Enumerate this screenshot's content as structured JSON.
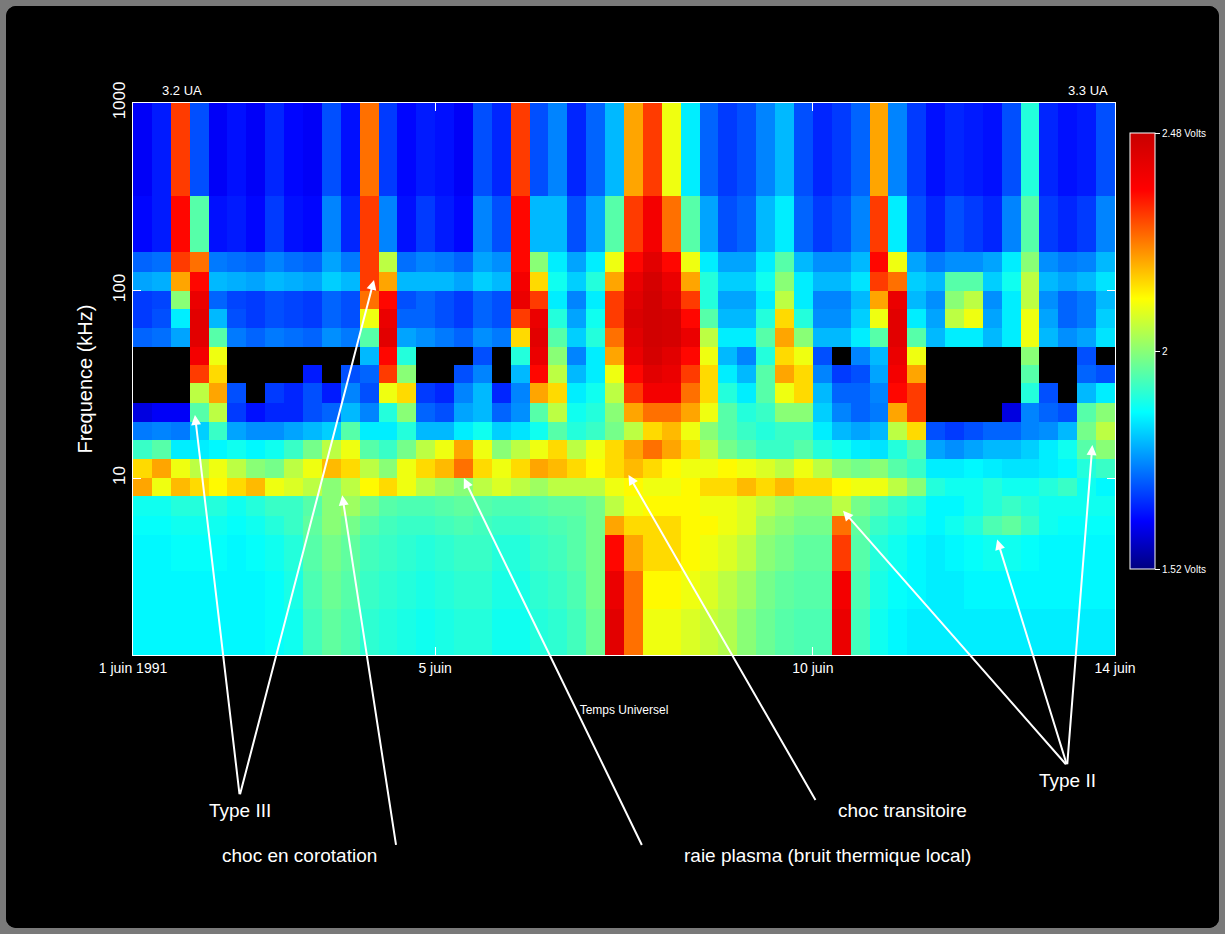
{
  "chart_data": {
    "type": "heatmap",
    "x_label": "Temps Universel",
    "y_label": "Frequence (kHz)",
    "xlim": [
      1,
      14
    ],
    "xticks": [
      {
        "value": 1,
        "label": "1 juin 1991"
      },
      {
        "value": 5,
        "label": "5 juin"
      },
      {
        "value": 10,
        "label": "10 juin"
      },
      {
        "value": 14,
        "label": "14 juin"
      }
    ],
    "ylim": [
      1.14,
      1000
    ],
    "yticks": [
      10,
      100,
      1000
    ],
    "log": "y",
    "grid": false,
    "top_labels": [
      "3.2 UA",
      "3.3 UA"
    ],
    "x_edges": [
      1,
      1.25,
      1.5,
      1.75,
      2,
      2.25,
      2.5,
      2.75,
      3,
      3.25,
      3.5,
      3.75,
      4,
      4.25,
      4.5,
      4.75,
      5,
      5.25,
      5.5,
      5.75,
      6,
      6.25,
      6.5,
      6.75,
      7,
      7.25,
      7.5,
      7.75,
      8,
      8.25,
      8.5,
      8.75,
      9,
      9.25,
      9.5,
      9.75,
      10,
      10.25,
      10.5,
      10.75,
      11,
      11.25,
      11.5,
      11.75,
      12,
      12.25,
      12.5,
      12.75,
      13,
      13.25,
      13.5,
      13.75,
      14
    ],
    "y_edges": [
      1.14,
      2,
      3.2,
      5,
      6.3,
      8,
      10,
      12.6,
      16,
      20,
      25,
      32,
      40,
      50,
      63,
      80,
      100,
      126,
      160,
      320,
      1000
    ],
    "cells": [
      [
        1.86,
        1.86,
        1.86,
        1.86,
        1.86,
        1.86,
        1.86,
        1.87,
        1.88,
        1.93,
        1.96,
        1.94,
        1.91,
        1.9,
        1.89,
        1.88,
        1.89,
        1.9,
        1.9,
        1.88,
        1.88,
        1.9,
        1.91,
        1.93,
        1.97,
        2.42,
        2.25,
        2.1,
        2.1,
        2.08,
        2.06,
        2.04,
        2.0,
        1.97,
        1.95,
        1.94,
        1.94,
        2.4,
        1.93,
        1.88,
        1.86,
        1.85,
        1.85,
        1.85,
        1.85,
        1.85,
        1.85,
        1.85,
        1.85,
        1.85,
        1.85,
        1.85
      ],
      [
        1.86,
        1.86,
        1.86,
        1.86,
        1.86,
        1.86,
        1.86,
        1.87,
        1.89,
        1.94,
        1.97,
        1.95,
        1.92,
        1.91,
        1.9,
        1.89,
        1.9,
        1.91,
        1.91,
        1.89,
        1.89,
        1.91,
        1.92,
        1.94,
        1.98,
        2.4,
        2.25,
        2.12,
        2.12,
        2.1,
        2.08,
        2.05,
        2.02,
        1.98,
        1.96,
        1.95,
        1.95,
        2.38,
        1.94,
        1.89,
        1.87,
        1.86,
        1.85,
        1.85,
        1.86,
        1.86,
        1.86,
        1.86,
        1.86,
        1.86,
        1.86,
        1.86
      ],
      [
        1.86,
        1.86,
        1.87,
        1.87,
        1.87,
        1.86,
        1.87,
        1.88,
        1.9,
        1.95,
        1.98,
        1.96,
        1.93,
        1.92,
        1.91,
        1.9,
        1.91,
        1.92,
        1.92,
        1.9,
        1.9,
        1.92,
        1.93,
        1.95,
        1.98,
        2.35,
        2.2,
        2.15,
        2.15,
        2.12,
        2.1,
        2.08,
        2.05,
        2.0,
        1.98,
        1.96,
        1.96,
        2.3,
        1.95,
        1.9,
        1.88,
        1.86,
        1.85,
        1.86,
        1.87,
        1.88,
        1.88,
        1.87,
        1.86,
        1.86,
        1.86,
        1.86
      ],
      [
        1.87,
        1.87,
        1.88,
        1.88,
        1.88,
        1.87,
        1.88,
        1.9,
        1.92,
        1.96,
        2.0,
        1.98,
        1.95,
        1.93,
        1.92,
        1.92,
        1.93,
        1.94,
        1.93,
        1.92,
        1.92,
        1.93,
        1.94,
        1.95,
        1.98,
        2.2,
        2.15,
        2.15,
        2.15,
        2.12,
        2.12,
        2.1,
        2.08,
        2.02,
        2.0,
        1.98,
        1.98,
        2.25,
        1.96,
        1.92,
        1.9,
        1.88,
        1.86,
        1.88,
        1.9,
        1.94,
        1.96,
        1.92,
        1.88,
        1.87,
        1.87,
        1.87
      ],
      [
        1.88,
        1.88,
        1.9,
        1.9,
        1.9,
        1.88,
        1.9,
        1.92,
        1.92,
        1.95,
        2.0,
        2.02,
        1.98,
        1.95,
        1.94,
        1.94,
        1.95,
        1.96,
        1.95,
        1.94,
        1.94,
        1.95,
        1.96,
        1.96,
        1.98,
        2.05,
        2.1,
        2.12,
        2.12,
        2.12,
        2.1,
        2.1,
        2.08,
        2.05,
        2.02,
        2.0,
        2.0,
        2.05,
        1.98,
        1.95,
        1.92,
        1.9,
        1.86,
        1.86,
        1.88,
        1.9,
        1.92,
        1.9,
        1.88,
        1.88,
        1.88,
        1.88
      ],
      [
        2.2,
        2.1,
        2.18,
        2.15,
        2.12,
        2.15,
        2.18,
        2.1,
        2.08,
        2.05,
        2.0,
        2.05,
        2.12,
        2.15,
        2.1,
        2.05,
        2.02,
        2.0,
        2.05,
        2.08,
        2.05,
        2.02,
        2.05,
        2.05,
        2.05,
        2.1,
        2.12,
        2.1,
        2.1,
        2.12,
        2.15,
        2.15,
        2.18,
        2.15,
        2.18,
        2.15,
        2.15,
        2.12,
        2.1,
        2.1,
        2.05,
        2.0,
        1.9,
        1.88,
        1.88,
        1.9,
        1.88,
        1.88,
        1.9,
        1.92,
        1.88,
        1.86
      ],
      [
        2.15,
        2.2,
        2.1,
        2.05,
        2.1,
        2.05,
        2.0,
        1.98,
        2.05,
        2.1,
        2.18,
        2.15,
        2.05,
        2.0,
        2.1,
        2.15,
        2.18,
        2.25,
        2.15,
        2.1,
        2.15,
        2.2,
        2.18,
        2.15,
        2.12,
        2.15,
        2.18,
        2.15,
        2.12,
        2.1,
        2.1,
        2.12,
        2.1,
        2.08,
        2.05,
        2.1,
        2.05,
        2.0,
        1.98,
        2.0,
        1.95,
        1.92,
        1.85,
        1.85,
        1.86,
        1.85,
        1.84,
        1.84,
        1.85,
        1.86,
        1.9,
        1.92
      ],
      [
        1.92,
        1.95,
        1.85,
        1.85,
        1.86,
        1.88,
        1.86,
        1.88,
        1.92,
        1.98,
        2.05,
        2.1,
        1.95,
        1.92,
        1.98,
        2.05,
        2.1,
        2.2,
        2.1,
        2.0,
        2.05,
        2.1,
        2.15,
        2.05,
        2.1,
        2.15,
        2.2,
        2.25,
        2.2,
        2.15,
        2.05,
        1.98,
        1.95,
        1.92,
        1.92,
        1.95,
        1.9,
        1.88,
        1.85,
        1.84,
        1.9,
        1.95,
        1.78,
        1.76,
        1.78,
        1.8,
        1.8,
        1.82,
        1.85,
        1.88,
        1.95,
        2.0
      ],
      [
        1.74,
        1.75,
        1.74,
        1.82,
        1.92,
        1.78,
        1.76,
        1.76,
        1.78,
        1.8,
        1.82,
        1.95,
        1.85,
        1.85,
        1.9,
        1.8,
        1.8,
        1.85,
        1.88,
        1.82,
        1.84,
        1.88,
        1.95,
        1.9,
        1.92,
        1.98,
        2.05,
        2.15,
        2.18,
        2.1,
        2.0,
        1.95,
        1.92,
        1.9,
        1.92,
        1.92,
        1.85,
        1.8,
        1.78,
        1.8,
        2.05,
        2.15,
        1.7,
        1.68,
        1.7,
        1.72,
        1.72,
        1.75,
        1.76,
        1.8,
        1.98,
        2.05
      ],
      [
        1.6,
        1.62,
        1.62,
        1.95,
        2.05,
        1.68,
        1.64,
        1.66,
        1.66,
        1.7,
        1.72,
        1.8,
        1.75,
        1.9,
        2.0,
        1.72,
        1.7,
        1.78,
        1.8,
        1.72,
        1.76,
        1.95,
        2.05,
        1.88,
        1.9,
        2.0,
        2.2,
        2.25,
        2.25,
        2.2,
        2.1,
        1.95,
        1.9,
        1.92,
        2.0,
        2.0,
        1.82,
        1.75,
        1.72,
        1.74,
        2.2,
        2.3,
        null,
        null,
        null,
        null,
        1.6,
        1.75,
        1.72,
        1.7,
        1.95,
        2.0
      ],
      [
        null,
        null,
        null,
        2.05,
        2.2,
        1.7,
        null,
        1.68,
        1.66,
        1.7,
        1.65,
        1.75,
        1.7,
        2.1,
        2.15,
        1.68,
        1.66,
        1.75,
        1.8,
        1.66,
        1.75,
        2.2,
        2.15,
        1.85,
        1.88,
        2.05,
        2.3,
        2.38,
        2.38,
        2.25,
        2.15,
        1.9,
        1.85,
        1.95,
        2.1,
        2.15,
        1.8,
        1.72,
        1.72,
        1.75,
        2.35,
        2.3,
        null,
        null,
        null,
        null,
        null,
        1.9,
        1.7,
        null,
        1.8,
        1.85
      ],
      [
        null,
        null,
        null,
        2.3,
        2.15,
        null,
        null,
        null,
        null,
        1.65,
        null,
        1.7,
        1.72,
        2.3,
        2.0,
        null,
        null,
        1.7,
        1.75,
        null,
        1.8,
        2.35,
        2.05,
        1.8,
        1.85,
        2.1,
        2.35,
        2.42,
        2.4,
        2.3,
        2.15,
        1.85,
        1.8,
        1.95,
        2.2,
        2.15,
        1.75,
        1.68,
        1.7,
        1.78,
        2.38,
        2.2,
        null,
        null,
        null,
        null,
        null,
        1.95,
        null,
        null,
        1.72,
        1.7
      ],
      [
        null,
        null,
        null,
        2.38,
        2.1,
        null,
        null,
        null,
        null,
        null,
        null,
        null,
        1.8,
        2.35,
        1.9,
        null,
        null,
        null,
        1.7,
        null,
        1.9,
        2.4,
        2.0,
        1.75,
        1.85,
        2.2,
        2.4,
        2.45,
        2.42,
        2.35,
        2.1,
        1.8,
        1.75,
        1.9,
        2.15,
        2.1,
        1.7,
        null,
        1.75,
        1.8,
        2.4,
        2.1,
        null,
        null,
        null,
        null,
        null,
        2.0,
        null,
        null,
        1.7,
        null
      ],
      [
        1.72,
        1.73,
        1.78,
        2.42,
        1.95,
        1.74,
        1.72,
        1.74,
        1.73,
        1.72,
        1.76,
        1.74,
        1.95,
        2.42,
        1.78,
        1.76,
        1.74,
        1.72,
        1.76,
        1.74,
        2.15,
        2.42,
        1.95,
        1.82,
        1.9,
        2.25,
        2.42,
        2.46,
        2.45,
        2.4,
        2.05,
        1.85,
        1.85,
        1.95,
        2.2,
        2.0,
        1.8,
        1.8,
        1.85,
        1.95,
        2.42,
        1.95,
        1.8,
        1.85,
        1.85,
        1.8,
        1.85,
        2.1,
        1.8,
        1.76,
        1.78,
        1.84
      ],
      [
        1.68,
        1.7,
        1.85,
        2.42,
        1.8,
        1.7,
        1.68,
        1.7,
        1.69,
        1.68,
        1.72,
        1.7,
        2.1,
        2.4,
        1.72,
        1.72,
        1.7,
        1.68,
        1.72,
        1.7,
        2.3,
        2.4,
        1.9,
        1.78,
        1.88,
        2.3,
        2.44,
        2.46,
        2.45,
        2.35,
        1.95,
        1.8,
        1.8,
        1.9,
        2.15,
        1.9,
        1.76,
        1.76,
        1.82,
        2.1,
        2.42,
        1.85,
        1.78,
        2.05,
        2.1,
        1.78,
        1.85,
        2.1,
        1.78,
        1.72,
        1.74,
        1.82
      ],
      [
        1.68,
        1.69,
        2.0,
        2.4,
        1.72,
        1.69,
        1.68,
        1.7,
        1.69,
        1.68,
        1.72,
        1.7,
        2.25,
        2.35,
        1.7,
        1.72,
        1.7,
        1.68,
        1.72,
        1.7,
        2.4,
        2.3,
        1.85,
        1.75,
        1.85,
        2.3,
        2.42,
        2.46,
        2.42,
        2.3,
        1.9,
        1.78,
        1.78,
        1.85,
        2.05,
        1.85,
        1.75,
        1.75,
        1.8,
        2.2,
        2.4,
        1.8,
        1.76,
        2.0,
        2.05,
        1.76,
        1.85,
        2.05,
        1.76,
        1.72,
        1.74,
        1.8
      ],
      [
        1.78,
        1.79,
        2.2,
        2.35,
        1.8,
        1.79,
        1.78,
        1.8,
        1.79,
        1.78,
        1.82,
        1.8,
        2.3,
        2.2,
        1.8,
        1.8,
        1.8,
        1.78,
        1.82,
        1.8,
        2.38,
        2.15,
        1.88,
        1.82,
        1.9,
        2.2,
        2.4,
        2.45,
        2.4,
        2.2,
        1.9,
        1.82,
        1.82,
        1.88,
        2.0,
        1.85,
        1.8,
        1.8,
        1.84,
        2.3,
        2.25,
        1.82,
        1.8,
        1.95,
        1.95,
        1.82,
        1.88,
        2.05,
        1.8,
        1.78,
        1.8,
        1.84
      ],
      [
        1.72,
        1.73,
        2.3,
        2.25,
        1.74,
        1.73,
        1.72,
        1.75,
        1.73,
        1.72,
        1.78,
        1.74,
        2.3,
        2.05,
        1.73,
        1.75,
        1.74,
        1.72,
        1.78,
        1.76,
        2.35,
        2.0,
        1.85,
        1.78,
        1.85,
        2.1,
        2.35,
        2.42,
        2.35,
        2.1,
        1.85,
        1.78,
        1.78,
        1.85,
        1.95,
        1.8,
        1.76,
        1.76,
        1.8,
        2.35,
        2.1,
        1.78,
        1.74,
        1.76,
        1.76,
        1.78,
        1.85,
        2.0,
        1.76,
        1.74,
        1.75,
        1.8
      ],
      [
        1.63,
        1.65,
        2.35,
        1.95,
        1.64,
        1.65,
        1.63,
        1.68,
        1.64,
        1.63,
        1.75,
        1.66,
        2.3,
        1.75,
        1.64,
        1.68,
        1.65,
        1.63,
        1.75,
        1.7,
        2.35,
        1.8,
        1.8,
        1.7,
        1.78,
        1.95,
        2.3,
        2.38,
        2.25,
        1.95,
        1.78,
        1.7,
        1.72,
        1.8,
        1.85,
        1.72,
        1.68,
        1.7,
        1.75,
        2.3,
        1.85,
        1.7,
        1.66,
        1.7,
        1.68,
        1.66,
        1.75,
        1.95,
        1.68,
        1.66,
        1.68,
        1.75
      ],
      [
        1.62,
        1.65,
        2.3,
        1.7,
        1.62,
        1.64,
        1.62,
        1.66,
        1.63,
        1.62,
        1.7,
        1.64,
        2.25,
        1.68,
        1.63,
        1.65,
        1.64,
        1.62,
        1.7,
        1.66,
        2.3,
        1.7,
        1.75,
        1.66,
        1.72,
        1.8,
        2.2,
        2.3,
        2.1,
        1.85,
        1.72,
        1.68,
        1.7,
        1.75,
        1.8,
        1.7,
        1.66,
        1.68,
        1.72,
        2.2,
        1.75,
        1.68,
        1.64,
        1.66,
        1.65,
        1.64,
        1.7,
        1.9,
        1.66,
        1.64,
        1.65,
        1.7
      ]
    ],
    "colorbar": {
      "range": [
        1.52,
        2.48
      ],
      "ticks": [
        {
          "value": 1.52,
          "label": "1.52 Volts"
        },
        2,
        {
          "value": 2.48,
          "label": "2.48 Volts"
        }
      ]
    },
    "annotations": [
      {
        "text": "Type III",
        "points": [
          [
            1.82,
            21.7
          ],
          [
            4.19,
            114
          ]
        ]
      },
      {
        "text": "choc en corotation",
        "points": [
          [
            3.77,
            8.1
          ]
        ]
      },
      {
        "text": "raie plasma (bruit thermique local)",
        "points": [
          [
            5.38,
            10
          ]
        ]
      },
      {
        "text": "choc transitoire",
        "points": [
          [
            7.56,
            10.4
          ]
        ]
      },
      {
        "text": "Type II",
        "points": [
          [
            10.4,
            6.7
          ],
          [
            12.44,
            4.7
          ],
          [
            13.7,
            15
          ]
        ]
      }
    ]
  }
}
